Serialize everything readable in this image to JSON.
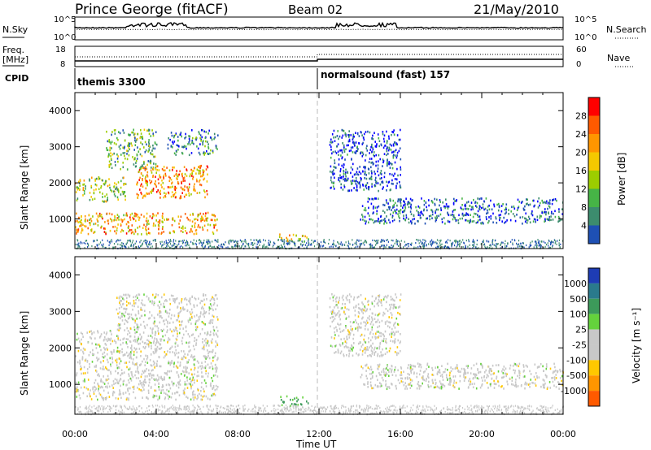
{
  "header": {
    "station": "Prince George (fitACF)",
    "beam": "Beam 02",
    "date": "21/May/2010"
  },
  "top_strip": {
    "left_label": "N.Sky",
    "right_label": "N.Search",
    "left_ticks": [
      "10^5",
      "10^0"
    ],
    "right_ticks": [
      "10^5",
      "10^0"
    ]
  },
  "freq_strip": {
    "left_label_1": "Freq.",
    "left_label_2": "[MHz]",
    "right_label": "Nave",
    "left_ticks": [
      "18",
      "8"
    ],
    "right_ticks": [
      "60",
      "0"
    ]
  },
  "cpid": {
    "label": "CPID",
    "segments": [
      {
        "start_hour": 0,
        "name": "themis 3300"
      },
      {
        "start_hour": 12,
        "name": "normalsound (fast) 157"
      }
    ]
  },
  "x_axis": {
    "title": "Time UT",
    "ticks": [
      "00:00",
      "04:00",
      "08:00",
      "12:00",
      "16:00",
      "20:00",
      "00:00"
    ],
    "range_hours": [
      0,
      24
    ]
  },
  "power_panel": {
    "ylabel": "Slant Range [km]",
    "yticks": [
      "1000",
      "2000",
      "3000",
      "4000"
    ],
    "colorbar_title": "Power [dB]",
    "colorbar_ticks": [
      "28",
      "24",
      "20",
      "16",
      "12",
      "8",
      "4"
    ],
    "colors": [
      "#ff0000",
      "#ff5a00",
      "#ff9600",
      "#f5c800",
      "#9ccd00",
      "#46b446",
      "#3c8c6e",
      "#1e50b4",
      "#0000ff"
    ]
  },
  "velocity_panel": {
    "ylabel": "Slant Range [km]",
    "yticks": [
      "1000",
      "2000",
      "3000",
      "4000"
    ],
    "colorbar_title": "Velocity [m s⁻¹]",
    "colorbar_ticks": [
      "1000",
      "500",
      "100",
      "25",
      "-25",
      "-100",
      "-500",
      "-1000"
    ],
    "colors": [
      "#1e3cb4",
      "#2a7a8c",
      "#3c9a5a",
      "#64d23c",
      "#c8c8c8",
      "#c8c8c8",
      "#ffc800",
      "#ff9600",
      "#ff5a00",
      "#ff0000"
    ]
  },
  "chart_data": [
    {
      "type": "line",
      "series": [
        {
          "name": "N.Sky",
          "values": []
        },
        {
          "name": "N.Search",
          "values": []
        }
      ],
      "x_range": [
        0,
        24
      ]
    },
    {
      "type": "line",
      "series": [
        {
          "name": "Freq.",
          "values": []
        },
        {
          "name": "Nave",
          "values": []
        }
      ],
      "x_range": [
        0,
        24
      ]
    },
    {
      "type": "heatmap",
      "ylim": [
        180,
        4500
      ],
      "colorbar_range": [
        0,
        30
      ],
      "regions": [
        {
          "t": [
            0.0,
            7.0
          ],
          "r": [
            600,
            1200
          ],
          "val": 20
        },
        {
          "t": [
            0.0,
            2.5
          ],
          "r": [
            1500,
            2200
          ],
          "val": 14
        },
        {
          "t": [
            1.5,
            4.0
          ],
          "r": [
            2400,
            3500
          ],
          "val": 12
        },
        {
          "t": [
            3.0,
            6.5
          ],
          "r": [
            1600,
            2500
          ],
          "val": 22
        },
        {
          "t": [
            4.5,
            7.0
          ],
          "r": [
            2800,
            3500
          ],
          "val": 8
        },
        {
          "t": [
            10.0,
            11.5
          ],
          "r": [
            400,
            600
          ],
          "val": 18
        },
        {
          "t": [
            14.0,
            24.0
          ],
          "r": [
            900,
            1600
          ],
          "val": 6
        },
        {
          "t": [
            12.5,
            16.0
          ],
          "r": [
            1800,
            3500
          ],
          "val": 4
        }
      ]
    },
    {
      "type": "heatmap",
      "ylim": [
        180,
        4500
      ],
      "colorbar_range": [
        -1000,
        1000
      ],
      "regions": [
        {
          "t": [
            0.0,
            7.0
          ],
          "r": [
            600,
            2500
          ],
          "val": 0
        },
        {
          "t": [
            2.0,
            7.0
          ],
          "r": [
            2500,
            3500
          ],
          "val": 0
        },
        {
          "t": [
            10.0,
            11.5
          ],
          "r": [
            400,
            700
          ],
          "val": 60
        },
        {
          "t": [
            14.0,
            24.0
          ],
          "r": [
            900,
            1600
          ],
          "val": 0
        },
        {
          "t": [
            12.5,
            16.0
          ],
          "r": [
            1800,
            3500
          ],
          "val": 0
        }
      ]
    }
  ]
}
